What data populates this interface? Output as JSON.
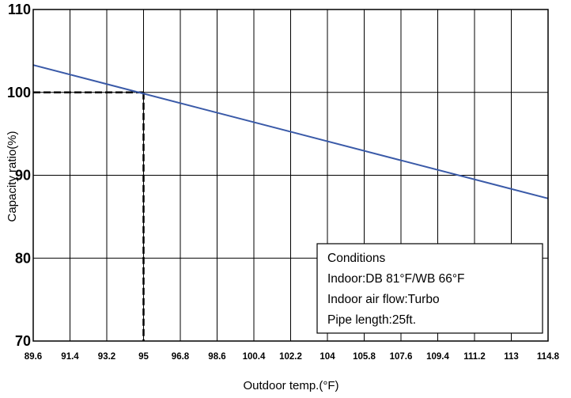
{
  "chart_data": {
    "type": "line",
    "title": "",
    "xlabel": "Outdoor temp.(°F)",
    "ylabel": "Capacity ratio(%)",
    "x_ticks": [
      "89.6",
      "91.4",
      "93.2",
      "95",
      "96.8",
      "98.6",
      "100.4",
      "102.2",
      "104",
      "105.8",
      "107.6",
      "109.4",
      "111.2",
      "113",
      "114.8"
    ],
    "xlim": [
      89.6,
      114.8
    ],
    "y_ticks": [
      "70",
      "80",
      "90",
      "100",
      "110"
    ],
    "ylim": [
      70,
      110
    ],
    "grid": true,
    "series": [
      {
        "x": [
          89.6,
          114.8
        ],
        "y": [
          103.3,
          87.2
        ],
        "color": "#3a5aa8"
      }
    ],
    "reference_lines": {
      "x": 95,
      "y": 100,
      "style": "dashed",
      "color": "#000000"
    },
    "annotation_box": {
      "position": "bottom-right",
      "lines": [
        "Conditions",
        "Indoor:DB 81°F/WB 66°F",
        "Indoor air flow:Turbo",
        "Pipe length:25ft."
      ]
    }
  }
}
